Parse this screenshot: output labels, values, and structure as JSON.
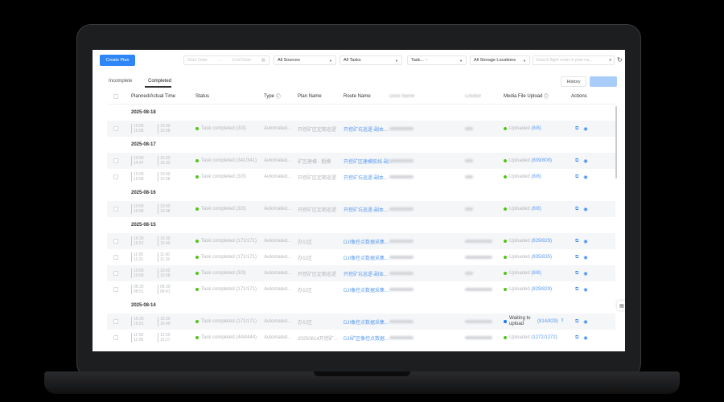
{
  "toolbar": {
    "create_plan": "Create Plan",
    "start_date": "Start Date",
    "end_date": "End Date",
    "sources": "All Sources",
    "tasks": "All Tasks",
    "task_tag": "Task...",
    "storage": "All Storage Locations",
    "search_placeholder": "Search flight route or plan na..."
  },
  "tabs": {
    "incomplete": "Incomplete",
    "completed": "Completed"
  },
  "history": "History",
  "columns": {
    "time": "Planned/Actual Time",
    "status": "Status",
    "type": "Type",
    "plan": "Plan Name",
    "route": "Route Name",
    "dock": "Dock Name",
    "creator": "Creator",
    "media": "Media File Upload",
    "actions": "Actions"
  },
  "colors": {
    "accent": "#2f86f6",
    "success": "#52c41a",
    "waiting": "#1677ff"
  },
  "groups": [
    {
      "date": "2025-08-18",
      "rows": [
        {
          "p": [
            "10:00",
            "10:08"
          ],
          "a": [
            "10:00",
            "10:08"
          ],
          "status": "Task completed (3/3)",
          "type": "Automated...",
          "plan": "开挖矿区定期巡逻",
          "route": "开挖矿坑巡逻-副本...",
          "media_label": "Uploaded",
          "media_count": "(8/8)",
          "media_state": "success"
        }
      ]
    },
    {
      "date": "2025-08-17",
      "rows": [
        {
          "p": [
            "14:00",
            "14:47"
          ],
          "a": [
            "15:03",
            "15:32"
          ],
          "status": "Task completed (341/341)",
          "type": "Automated...",
          "plan": "矿区建模 · 粗模",
          "route": "开挖矿区建模航线-副...",
          "media_label": "Uploaded",
          "media_count": "(809/809)",
          "media_state": "success"
        },
        {
          "p": [
            "10:00",
            "10:08"
          ],
          "a": [
            "10:00",
            "10:08"
          ],
          "status": "Task completed (3/3)",
          "type": "Automated...",
          "plan": "开挖矿区定期巡逻",
          "route": "开挖矿坑巡逻-副本...",
          "media_label": "Uploaded",
          "media_count": "(8/8)",
          "media_state": "success"
        }
      ]
    },
    {
      "date": "2025-08-16",
      "rows": [
        {
          "p": [
            "10:00",
            "10:08"
          ],
          "a": [
            "10:00",
            "10:08"
          ],
          "status": "Task completed (3/3)",
          "type": "Automated...",
          "plan": "开挖矿区定期巡逻",
          "route": "开挖矿坑巡逻-副本...",
          "media_label": "Uploaded",
          "media_count": "(8/8)",
          "media_state": "success"
        }
      ]
    },
    {
      "date": "2025-08-15",
      "rows": [
        {
          "p": [
            "16:30",
            "16:51"
          ],
          "a": [
            "16:30",
            "16:40"
          ],
          "status": "Task completed (171/171)",
          "type": "Automated...",
          "plan": "办公区",
          "route": "DJI像控点数据采集...",
          "media_label": "Uploaded",
          "media_count": "(829/829)",
          "media_state": "success"
        },
        {
          "p": [
            "11:00",
            "11:21"
          ],
          "a": [
            "11:00",
            "11:16"
          ],
          "status": "Task completed (171/171)",
          "type": "Automated...",
          "plan": "办公区",
          "route": "DJI像控点数据采集...",
          "media_label": "Uploaded",
          "media_count": "(835/835)",
          "media_state": "success"
        },
        {
          "p": [
            "10:00",
            "10:08"
          ],
          "a": [
            "10:00",
            "10:08"
          ],
          "status": "Task completed (3/3)",
          "type": "Automated...",
          "plan": "开挖矿区定期巡逻",
          "route": "开挖矿坑巡逻-副本...",
          "media_label": "Uploaded",
          "media_count": "(8/8)",
          "media_state": "success"
        },
        {
          "p": [
            "08:30",
            "08:51"
          ],
          "a": [
            "08:30",
            "08:41"
          ],
          "status": "Task completed (171/171)",
          "type": "Automated...",
          "plan": "办公区",
          "route": "DJI像控点数据采集...",
          "media_label": "Uploaded",
          "media_count": "(829/829)",
          "media_state": "success"
        }
      ]
    },
    {
      "date": "2025-08-14",
      "rows": [
        {
          "p": [
            "16:30",
            "16:51"
          ],
          "a": [
            "16:30",
            "16:49"
          ],
          "status": "Task completed (171/171)",
          "type": "Automated...",
          "plan": "办公区",
          "route": "DJI像控点数据采集...",
          "media_label": "Waiting to upload",
          "media_count": "(814/829)",
          "media_state": "waiting"
        },
        {
          "p": [
            "11:08",
            "11:58"
          ],
          "a": [
            "12:00",
            "12:27"
          ],
          "status": "Task completed (444/444)",
          "type": "Automated...",
          "plan": "20250814开挖矿...",
          "route": "DJI矿区像控点数据...",
          "media_label": "Uploaded",
          "media_count": "(1272/1272)",
          "media_state": "success"
        }
      ]
    }
  ]
}
